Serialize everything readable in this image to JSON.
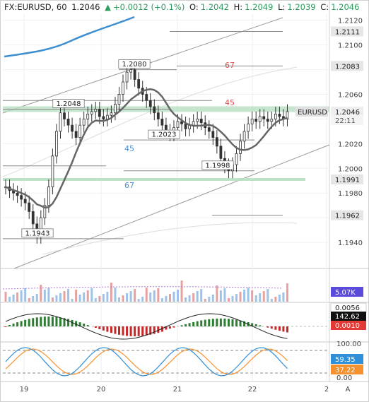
{
  "header": {
    "symbol": "FX:EURUSD, 60",
    "last": "1.2046",
    "arrow": "▲",
    "change": "+0.0012 (+0.1%)",
    "o_label": "O:",
    "o_value": "1.2042",
    "h_label": "H:",
    "h_value": "1.2049",
    "l_label": "L:",
    "l_value": "1.2039",
    "c_label": "C:",
    "c_value": "1.2046"
  },
  "price_axis": {
    "currency": "USD",
    "ticks": [
      "1.2120",
      "1.2100",
      "1.2080",
      "1.2060",
      "1.2040",
      "1.2020",
      "1.2000",
      "1.1980",
      "1.1960",
      "1.1940"
    ],
    "ticks_visible_text": [
      "1.2120",
      "1.2100",
      "1.2060",
      "1.2040",
      "1.2020",
      "1.2000",
      "1.1980",
      "1.1940"
    ],
    "tags": [
      {
        "text": "1.2111",
        "kind": "level"
      },
      {
        "text": "1.2083",
        "kind": "level"
      },
      {
        "text": "EURUSD",
        "kind": "symbol"
      },
      {
        "text": "1.2046",
        "kind": "price"
      },
      {
        "text": "22:11",
        "kind": "countdown"
      },
      {
        "text": "1.1991",
        "kind": "level"
      },
      {
        "text": "1.1962",
        "kind": "level"
      }
    ]
  },
  "annotations": {
    "high_1": "1.2080",
    "high_2": "1.2048",
    "mid": "1.2023",
    "low_1": "1.1998",
    "low_2": "1.1943",
    "fib_67_top": "67",
    "fib_45_top": "45",
    "fib_45_left": "45",
    "fib_67_left": "67"
  },
  "volume_pane": {
    "tag": "5.07K"
  },
  "macd_pane": {
    "tag_top": "0.0056",
    "tag_mid": "142.62",
    "tag_low": "0.0010"
  },
  "stoch_pane": {
    "axis_top": "100.00",
    "tag_1": "59.35",
    "tag_2": "37.22",
    "axis_bottom": "0.00"
  },
  "time_axis": {
    "labels": [
      "19",
      "20",
      "21",
      "22",
      "2"
    ]
  },
  "corner": {
    "label": "A"
  },
  "colors": {
    "up": "#26a69a",
    "down": "#ef5350",
    "candle": "#333333",
    "ma": "#666666",
    "blue_line": "#3d8fd1",
    "macd_up": "#2e7d32",
    "macd_down": "#c62828",
    "stoch_k": "#2f8fd8",
    "stoch_d": "#f5922f",
    "fib_red": "#d9534f",
    "fib_blue": "#4a8fd6",
    "zone": "#b7dfc2",
    "volume_tag": "#5b4bdb",
    "macd_tag": "#e53935"
  },
  "chart_data": {
    "type": "candlestick",
    "title": "FX:EURUSD, 60",
    "x_labels": [
      "19",
      "20",
      "21",
      "22",
      "2"
    ],
    "ylim": [
      1.192,
      1.2125
    ],
    "key_levels": [
      1.2111,
      1.2083,
      1.2046,
      1.1991,
      1.1962
    ],
    "annotated_prices": [
      1.208,
      1.2048,
      1.2023,
      1.1998,
      1.1943
    ],
    "close_path": [
      1.1985,
      1.1982,
      1.198,
      1.1978,
      1.1975,
      1.1972,
      1.1965,
      1.1955,
      1.1945,
      1.196,
      1.197,
      1.1985,
      1.201,
      1.203,
      1.2045,
      1.204,
      1.2035,
      1.203,
      1.2025,
      1.2035,
      1.204,
      1.2044,
      1.2046,
      1.2048,
      1.2042,
      1.204,
      1.2043,
      1.2045,
      1.2052,
      1.206,
      1.207,
      1.2078,
      1.208,
      1.2072,
      1.2065,
      1.206,
      1.2055,
      1.205,
      1.2045,
      1.204,
      1.2035,
      1.203,
      1.2028,
      1.2033,
      1.2038,
      1.2036,
      1.2032,
      1.2035,
      1.2038,
      1.204,
      1.2037,
      1.2033,
      1.203,
      1.2025,
      1.2018,
      1.2008,
      1.2002,
      1.1998,
      1.2003,
      1.2012,
      1.2022,
      1.203,
      1.2036,
      1.204,
      1.2038,
      1.2042,
      1.204,
      1.2038,
      1.204,
      1.2044,
      1.2042,
      1.204,
      1.2046
    ]
  }
}
